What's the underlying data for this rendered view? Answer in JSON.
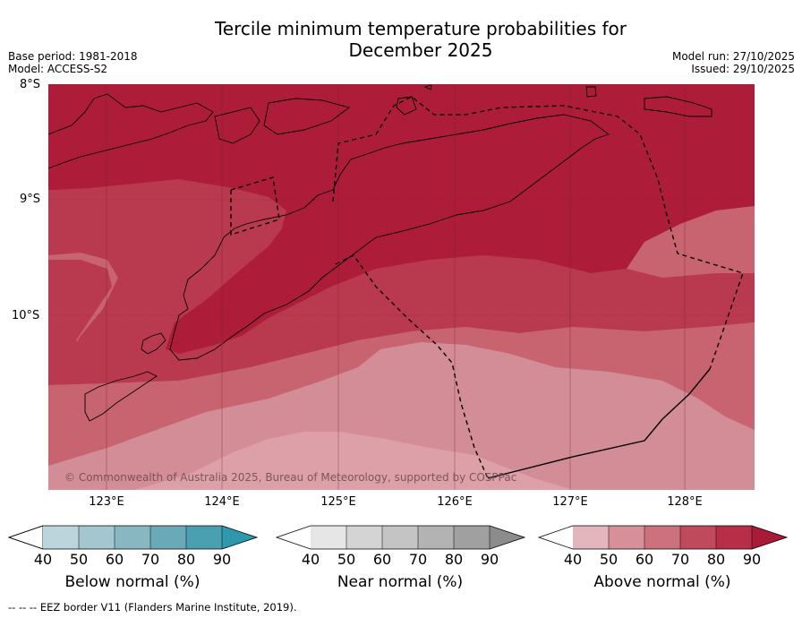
{
  "title_line1": "Tercile minimum temperature probabilities for",
  "title_line2": "December 2025",
  "base_period": "Base period: 1981-2018",
  "model": "Model: ACCESS-S2",
  "model_run": "Model run: 27/10/2025",
  "issued": "Issued: 29/10/2025",
  "lat_labels": [
    "8°S",
    "9°S",
    "10°S"
  ],
  "lon_labels": [
    "123°E",
    "124°E",
    "125°E",
    "126°E",
    "127°E",
    "128°E"
  ],
  "copyright": "© Commonwealth of Australia 2025, Bureau of Meteorology, supported by COSPPac",
  "footer": "-- -- -- EEZ border V11 (Flanders Marine Institute, 2019).",
  "colorbars": [
    {
      "label": "Below normal (%)",
      "ticks": [
        "40",
        "50",
        "60",
        "70",
        "80",
        "90"
      ],
      "colors": [
        "#bcd5dc",
        "#a4c7cf",
        "#88b7c2",
        "#6aa9b7",
        "#4aa0b1",
        "#2f98ad"
      ]
    },
    {
      "label": "Near normal (%)",
      "ticks": [
        "40",
        "50",
        "60",
        "70",
        "80",
        "90"
      ],
      "colors": [
        "#e6e6e6",
        "#d4d4d4",
        "#c4c4c4",
        "#b3b3b3",
        "#a0a0a0",
        "#8c8c8c"
      ]
    },
    {
      "label": "Above normal (%)",
      "ticks": [
        "40",
        "50",
        "60",
        "70",
        "80",
        "90"
      ],
      "colors": [
        "#e3b5bd",
        "#d89098",
        "#cc727f",
        "#bf4a5b",
        "#b72e48",
        "#a81a38"
      ]
    }
  ],
  "map_colors": {
    "above_60": "#d38d96",
    "above_70": "#c7646f",
    "above_80": "#b93a4f",
    "above_90": "#ad1d39"
  }
}
